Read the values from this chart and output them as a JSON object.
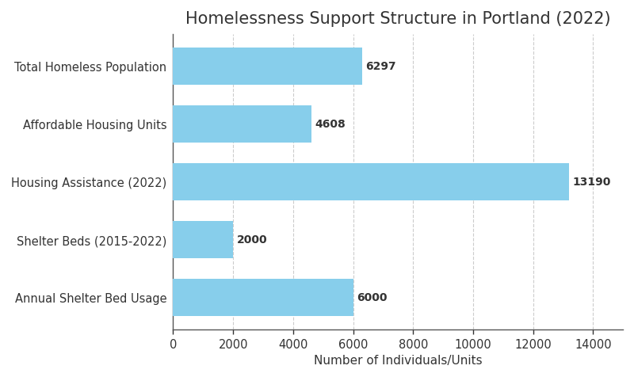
{
  "title": "Homelessness Support Structure in Portland (2022)",
  "categories": [
    "Annual Shelter Bed Usage",
    "Shelter Beds (2015-2022)",
    "Housing Assistance (2022)",
    "Affordable Housing Units",
    "Total Homeless Population"
  ],
  "values": [
    6000,
    2000,
    13190,
    4608,
    6297
  ],
  "bar_color": "#87CEEB",
  "xlabel": "Number of Individuals/Units",
  "xlim": [
    0,
    15000
  ],
  "xticks": [
    0,
    2000,
    4000,
    6000,
    8000,
    10000,
    12000,
    14000
  ],
  "title_fontsize": 15,
  "label_fontsize": 11,
  "tick_fontsize": 10.5,
  "value_fontsize": 10,
  "background_color": "#ffffff",
  "grid_color": "#cccccc",
  "bar_height": 0.65,
  "spine_color": "#555555",
  "text_color": "#333333"
}
